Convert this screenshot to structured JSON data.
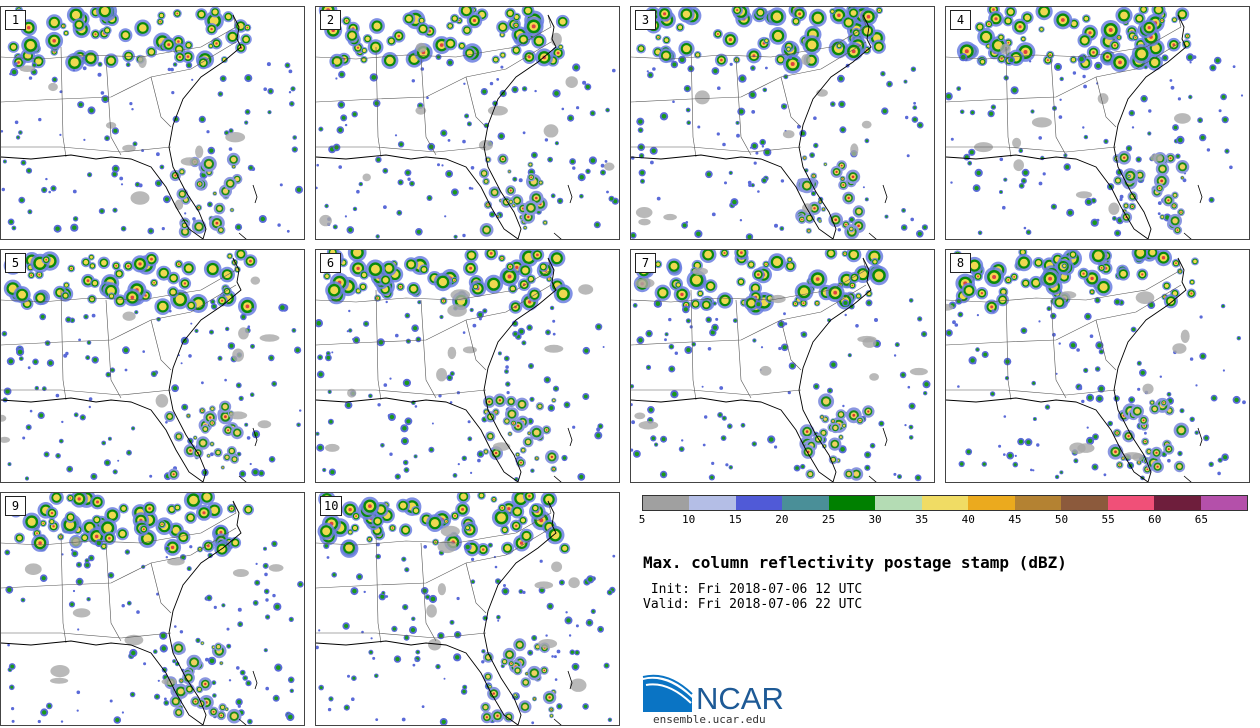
{
  "panels": [
    {
      "label": "1"
    },
    {
      "label": "2"
    },
    {
      "label": "3"
    },
    {
      "label": "4"
    },
    {
      "label": "5"
    },
    {
      "label": "6"
    },
    {
      "label": "7"
    },
    {
      "label": "8"
    },
    {
      "label": "9"
    },
    {
      "label": "10"
    }
  ],
  "colorbar": {
    "ticks": [
      "5",
      "10",
      "15",
      "20",
      "25",
      "30",
      "35",
      "40",
      "45",
      "50",
      "55",
      "60",
      "65"
    ],
    "colors": [
      "#a0a0a0",
      "#b4bee6",
      "#505ad7",
      "#4a8f98",
      "#008000",
      "#b4dcb4",
      "#f0dc64",
      "#ebaa1e",
      "#b48232",
      "#8c5a3c",
      "#f05078",
      "#6e1e3c",
      "#b450aa"
    ]
  },
  "title": "Max. column reflectivity postage stamp (dBZ)",
  "init": " Init: Fri 2018-07-06 12 UTC",
  "valid": "Valid: Fri 2018-07-06 22 UTC",
  "logo_text": "NCAR",
  "site": "ensemble.ucar.edu"
}
